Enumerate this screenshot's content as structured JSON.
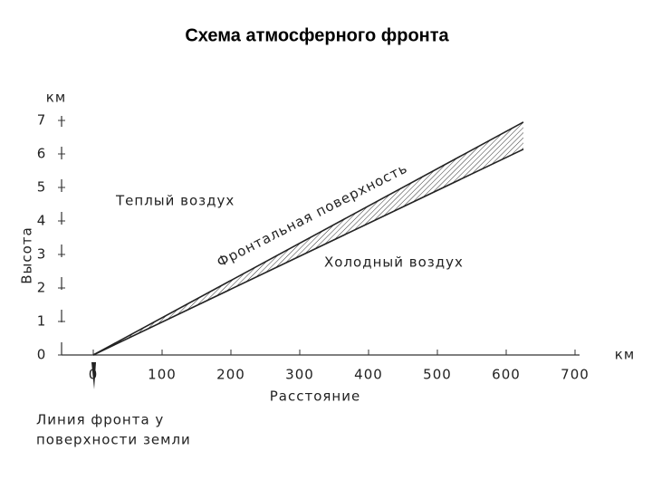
{
  "chart_data": {
    "type": "line",
    "title": "Схема атмосферного фронта",
    "x_label": "Расстояние",
    "y_label": "Высота",
    "x_unit": "км",
    "y_unit": "км",
    "x": [
      0,
      625
    ],
    "series": [
      {
        "color": "#222222",
        "values": [
          0,
          6.95
        ]
      },
      {
        "color": "#222222",
        "values": [
          0,
          6.14
        ]
      }
    ],
    "xlim": [
      0,
      700
    ],
    "xticks": [
      0,
      100,
      200,
      300,
      400,
      500,
      600,
      700
    ],
    "ylim": [
      0,
      7
    ],
    "yticks": [
      0,
      1,
      2,
      3,
      4,
      5,
      6,
      7
    ],
    "annotations": {
      "warm_air": "Теплый воздух",
      "frontal_surface": "Фронтальная поверхность",
      "cold_air": "Холодный воздух",
      "front_line": [
        "Линия фронта у",
        "поверхности земли"
      ]
    }
  }
}
